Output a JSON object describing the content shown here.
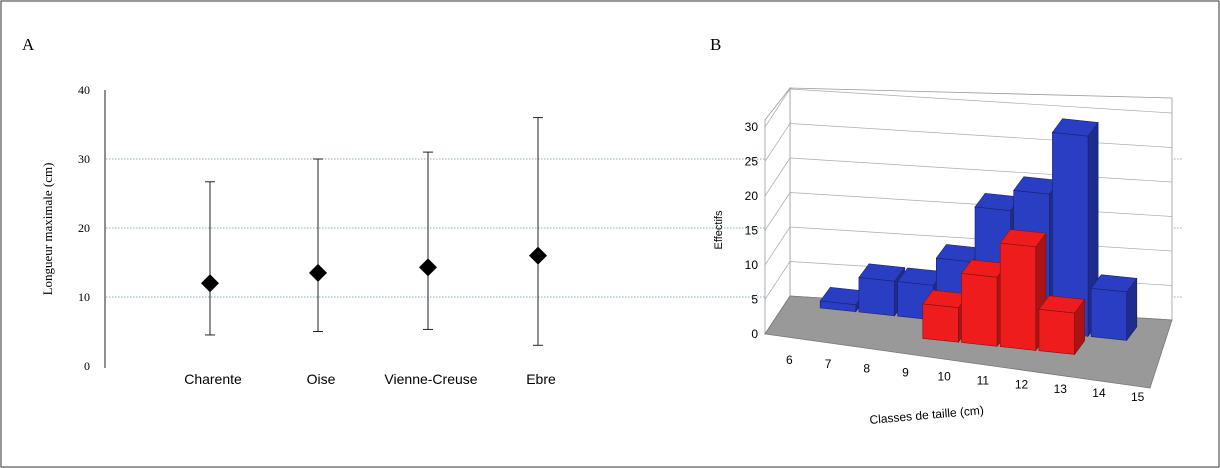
{
  "chart_data": [
    {
      "panel": "A",
      "type": "scatter",
      "title": "",
      "xlabel": "",
      "ylabel": "Longueur maximale (cm)",
      "ylim": [
        0,
        40
      ],
      "yticks": [
        "0",
        "10",
        "20",
        "30",
        "40"
      ],
      "grid": true,
      "categories": [
        "Charente",
        "Oise",
        "Vienne-Creuse",
        "Ebre"
      ],
      "series": [
        {
          "values": [
            12,
            13.5,
            14.3,
            16
          ],
          "min": [
            4.5,
            5,
            5.3,
            3
          ],
          "max": [
            26.7,
            30,
            31,
            36
          ]
        }
      ]
    },
    {
      "panel": "B",
      "type": "bar",
      "title": "",
      "xlabel": "Classes de taille (cm)",
      "ylabel": "Effectifs",
      "ylim": [
        0,
        30
      ],
      "yticks": [
        "0",
        "5",
        "10",
        "15",
        "20",
        "25",
        "30"
      ],
      "categories": [
        "6",
        "7",
        "8",
        "9",
        "10",
        "11",
        "12",
        "13",
        "14",
        "15"
      ],
      "series": [
        {
          "color": "#ee1c1c",
          "values": [
            0,
            0,
            0,
            0,
            5,
            10,
            15,
            6,
            0,
            0
          ]
        },
        {
          "color": "#2a3ec4",
          "values": [
            0,
            1,
            5,
            5,
            9,
            17,
            20,
            29,
            7,
            0
          ]
        }
      ]
    }
  ]
}
